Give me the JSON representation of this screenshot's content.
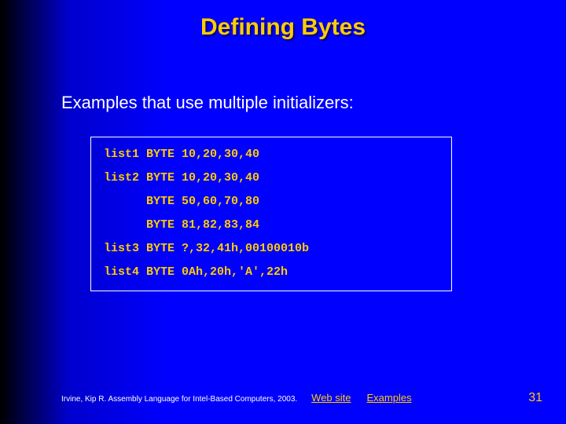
{
  "colors": {
    "background_gradient_left": "#000000",
    "background_gradient_right": "#0000ff",
    "title_color": "#ffcc00",
    "body_text_color": "#ffffff",
    "code_color": "#ffcc00",
    "code_border_color": "#ffffff",
    "link_color": "#ffcc00",
    "pagenum_color": "#ffcc00"
  },
  "title": "Defining Bytes",
  "subtitle": "Examples that use multiple initializers:",
  "code_lines": [
    "list1 BYTE 10,20,30,40",
    "list2 BYTE 10,20,30,40",
    "      BYTE 50,60,70,80",
    "      BYTE 81,82,83,84",
    "list3 BYTE ?,32,41h,00100010b",
    "list4 BYTE 0Ah,20h,'A',22h"
  ],
  "footer": {
    "citation": "Irvine, Kip R. Assembly Language for Intel-Based Computers, 2003.",
    "links": [
      "Web site",
      "Examples"
    ]
  },
  "page_number": "31"
}
